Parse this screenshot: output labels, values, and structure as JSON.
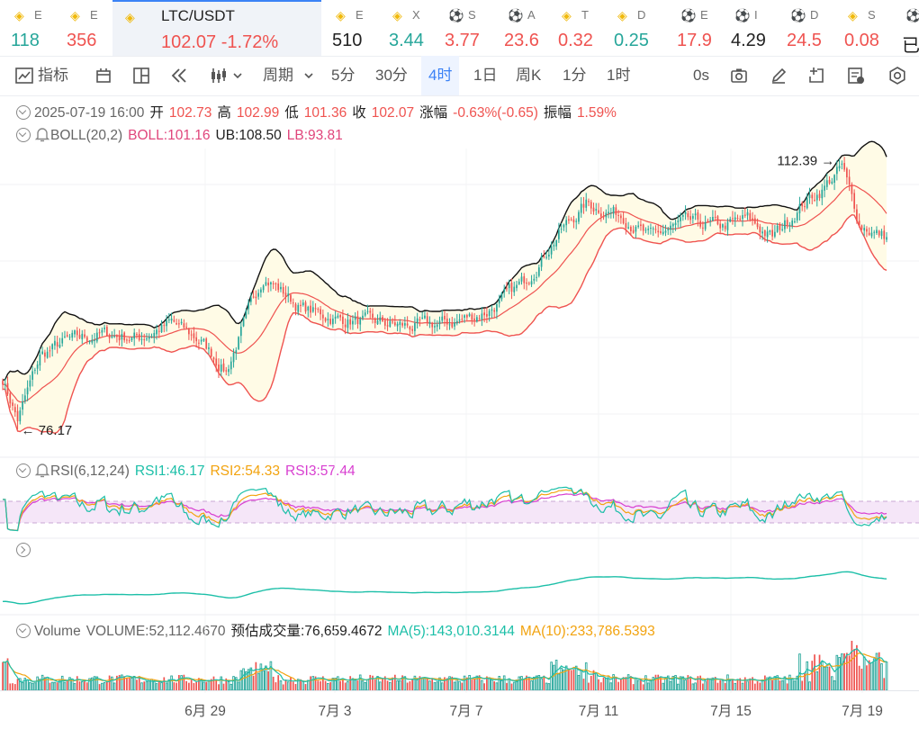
{
  "tickers": [
    {
      "sym": "E",
      "price": "118",
      "color": "up",
      "icon": "bnb"
    },
    {
      "sym": "E",
      "price": "356",
      "color": "dn",
      "icon": "bnb"
    },
    {
      "sym": "LTC/USDT",
      "price": "102.07",
      "change": "-1.72%",
      "color": "dn",
      "icon": "bnb",
      "active": true
    },
    {
      "sym": "E",
      "price": "510",
      "color": "dk",
      "icon": "bnb"
    },
    {
      "sym": "X",
      "price": "3.44",
      "color": "up",
      "icon": "bnb"
    },
    {
      "sym": "S",
      "price": "3.77",
      "color": "dn",
      "icon": "ball"
    },
    {
      "sym": "A",
      "price": "23.6",
      "color": "dn",
      "icon": "ball"
    },
    {
      "sym": "T",
      "price": "0.32",
      "color": "dn",
      "icon": "bnb"
    },
    {
      "sym": "D",
      "price": "0.25",
      "color": "up",
      "icon": "bnb"
    },
    {
      "sym": "E",
      "price": "17.9",
      "color": "dn",
      "icon": "ball"
    },
    {
      "sym": "I",
      "price": "4.29",
      "color": "dk",
      "icon": "ball"
    },
    {
      "sym": "D",
      "price": "24.5",
      "color": "dn",
      "icon": "ball"
    },
    {
      "sym": "S",
      "price": "0.08",
      "color": "dn",
      "icon": "bnb"
    },
    {
      "sym": "",
      "price": "已",
      "color": "dk",
      "icon": "ball"
    }
  ],
  "toolbar": {
    "indicator": "指标",
    "period": "周期",
    "intervals": [
      "5分",
      "30分",
      "4时",
      "1日",
      "周K",
      "1分",
      "1时"
    ],
    "selected": "4时",
    "countdown": "0s"
  },
  "ohlc": {
    "date": "2025-07-19 16:00",
    "open_label": "开",
    "open": "102.73",
    "high_label": "高",
    "high": "102.99",
    "low_label": "低",
    "low": "101.36",
    "close_label": "收",
    "close": "102.07",
    "chg_label": "涨幅",
    "chg": "-0.63%(-0.65)",
    "amp_label": "振幅",
    "amp": "1.59%"
  },
  "boll": {
    "label": "BOLL(20,2)",
    "mid": "BOLL:101.16",
    "ub": "UB:108.50",
    "lb": "LB:93.81"
  },
  "rsi": {
    "label": "RSI(6,12,24)",
    "r1": "RSI1:46.17",
    "r2": "RSI2:54.33",
    "r3": "RSI3:57.44"
  },
  "volume": {
    "label": "Volume",
    "vol": "VOLUME:52,112.4670",
    "est": "预估成交量:76,659.4672",
    "ma5": "MA(5):143,010.3144",
    "ma10": "MA(10):233,786.5393"
  },
  "chart_data": {
    "type": "candlestick",
    "x_ticks": [
      "6月 29",
      "7月 3",
      "7月 7",
      "7月 11",
      "7月 15",
      "7月 19"
    ],
    "y_range": [
      74,
      114
    ],
    "max_label": "112.39",
    "min_label": "76.17",
    "anchors": [
      [
        0,
        83
      ],
      [
        6,
        77.5
      ],
      [
        15,
        86
      ],
      [
        25,
        88
      ],
      [
        40,
        89
      ],
      [
        55,
        88.5
      ],
      [
        68,
        90.5
      ],
      [
        80,
        88
      ],
      [
        90,
        84
      ],
      [
        105,
        97
      ],
      [
        120,
        92.5
      ],
      [
        135,
        91
      ],
      [
        150,
        90.5
      ],
      [
        165,
        90
      ],
      [
        180,
        90.5
      ],
      [
        195,
        92
      ],
      [
        210,
        96
      ],
      [
        225,
        103
      ],
      [
        235,
        106.5
      ],
      [
        250,
        105
      ],
      [
        260,
        102
      ],
      [
        275,
        104
      ],
      [
        290,
        103.5
      ],
      [
        300,
        104.5
      ],
      [
        310,
        102
      ],
      [
        322,
        106.5
      ],
      [
        330,
        108.5
      ],
      [
        338,
        111.5
      ],
      [
        345,
        104
      ],
      [
        352,
        102.5
      ],
      [
        356,
        102.07
      ]
    ],
    "colors": {
      "up": "#26a69a",
      "down": "#ef5350",
      "boll_mid": "#ef5350",
      "boll_band": "#111111",
      "band_fill": "#fffbe6",
      "rsi1": "#1cbfa8",
      "rsi2": "#f2a30f",
      "rsi3": "#d83fd0",
      "rsi_zone": "#f5e6f8"
    }
  }
}
